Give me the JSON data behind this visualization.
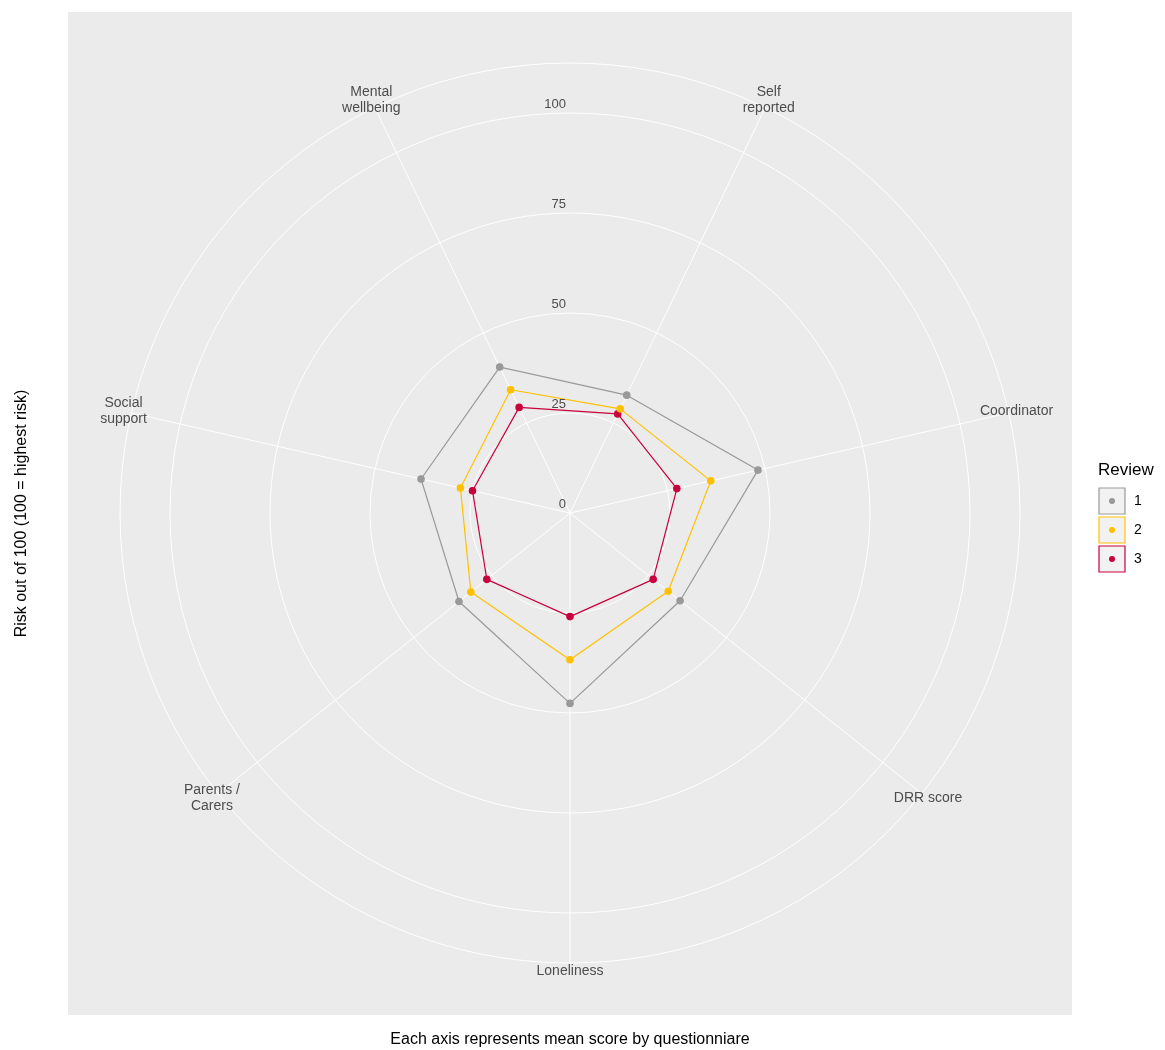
{
  "chart_data": {
    "type": "radar",
    "xlabel": "Each axis represents mean score by questionniare",
    "ylabel": "Risk out of 100 (100 = highest risk)",
    "legend_title": "Review",
    "legend": "right",
    "grid": true,
    "marker": "circle",
    "categories": [
      "Self\nreported",
      "Coordinator",
      "DRR score",
      "Loneliness",
      "Parents /\nCarers",
      "Social\nsupport",
      "Mental\nwellbeing"
    ],
    "ylim": [
      0,
      112.5
    ],
    "yticks": [
      0,
      25,
      50,
      75,
      100
    ],
    "series": [
      {
        "name": "1",
        "color": "#999999",
        "values": [
          32.7,
          48.2,
          35.2,
          47.6,
          35.5,
          38.2,
          40.5
        ]
      },
      {
        "name": "2",
        "color": "#ffc000",
        "values": [
          28.9,
          36.1,
          31.4,
          36.7,
          31.7,
          28.1,
          34.2
        ]
      },
      {
        "name": "3",
        "color": "#c8003c",
        "values": [
          27.5,
          27.4,
          26.6,
          25.9,
          26.6,
          25,
          29.3
        ]
      }
    ]
  }
}
